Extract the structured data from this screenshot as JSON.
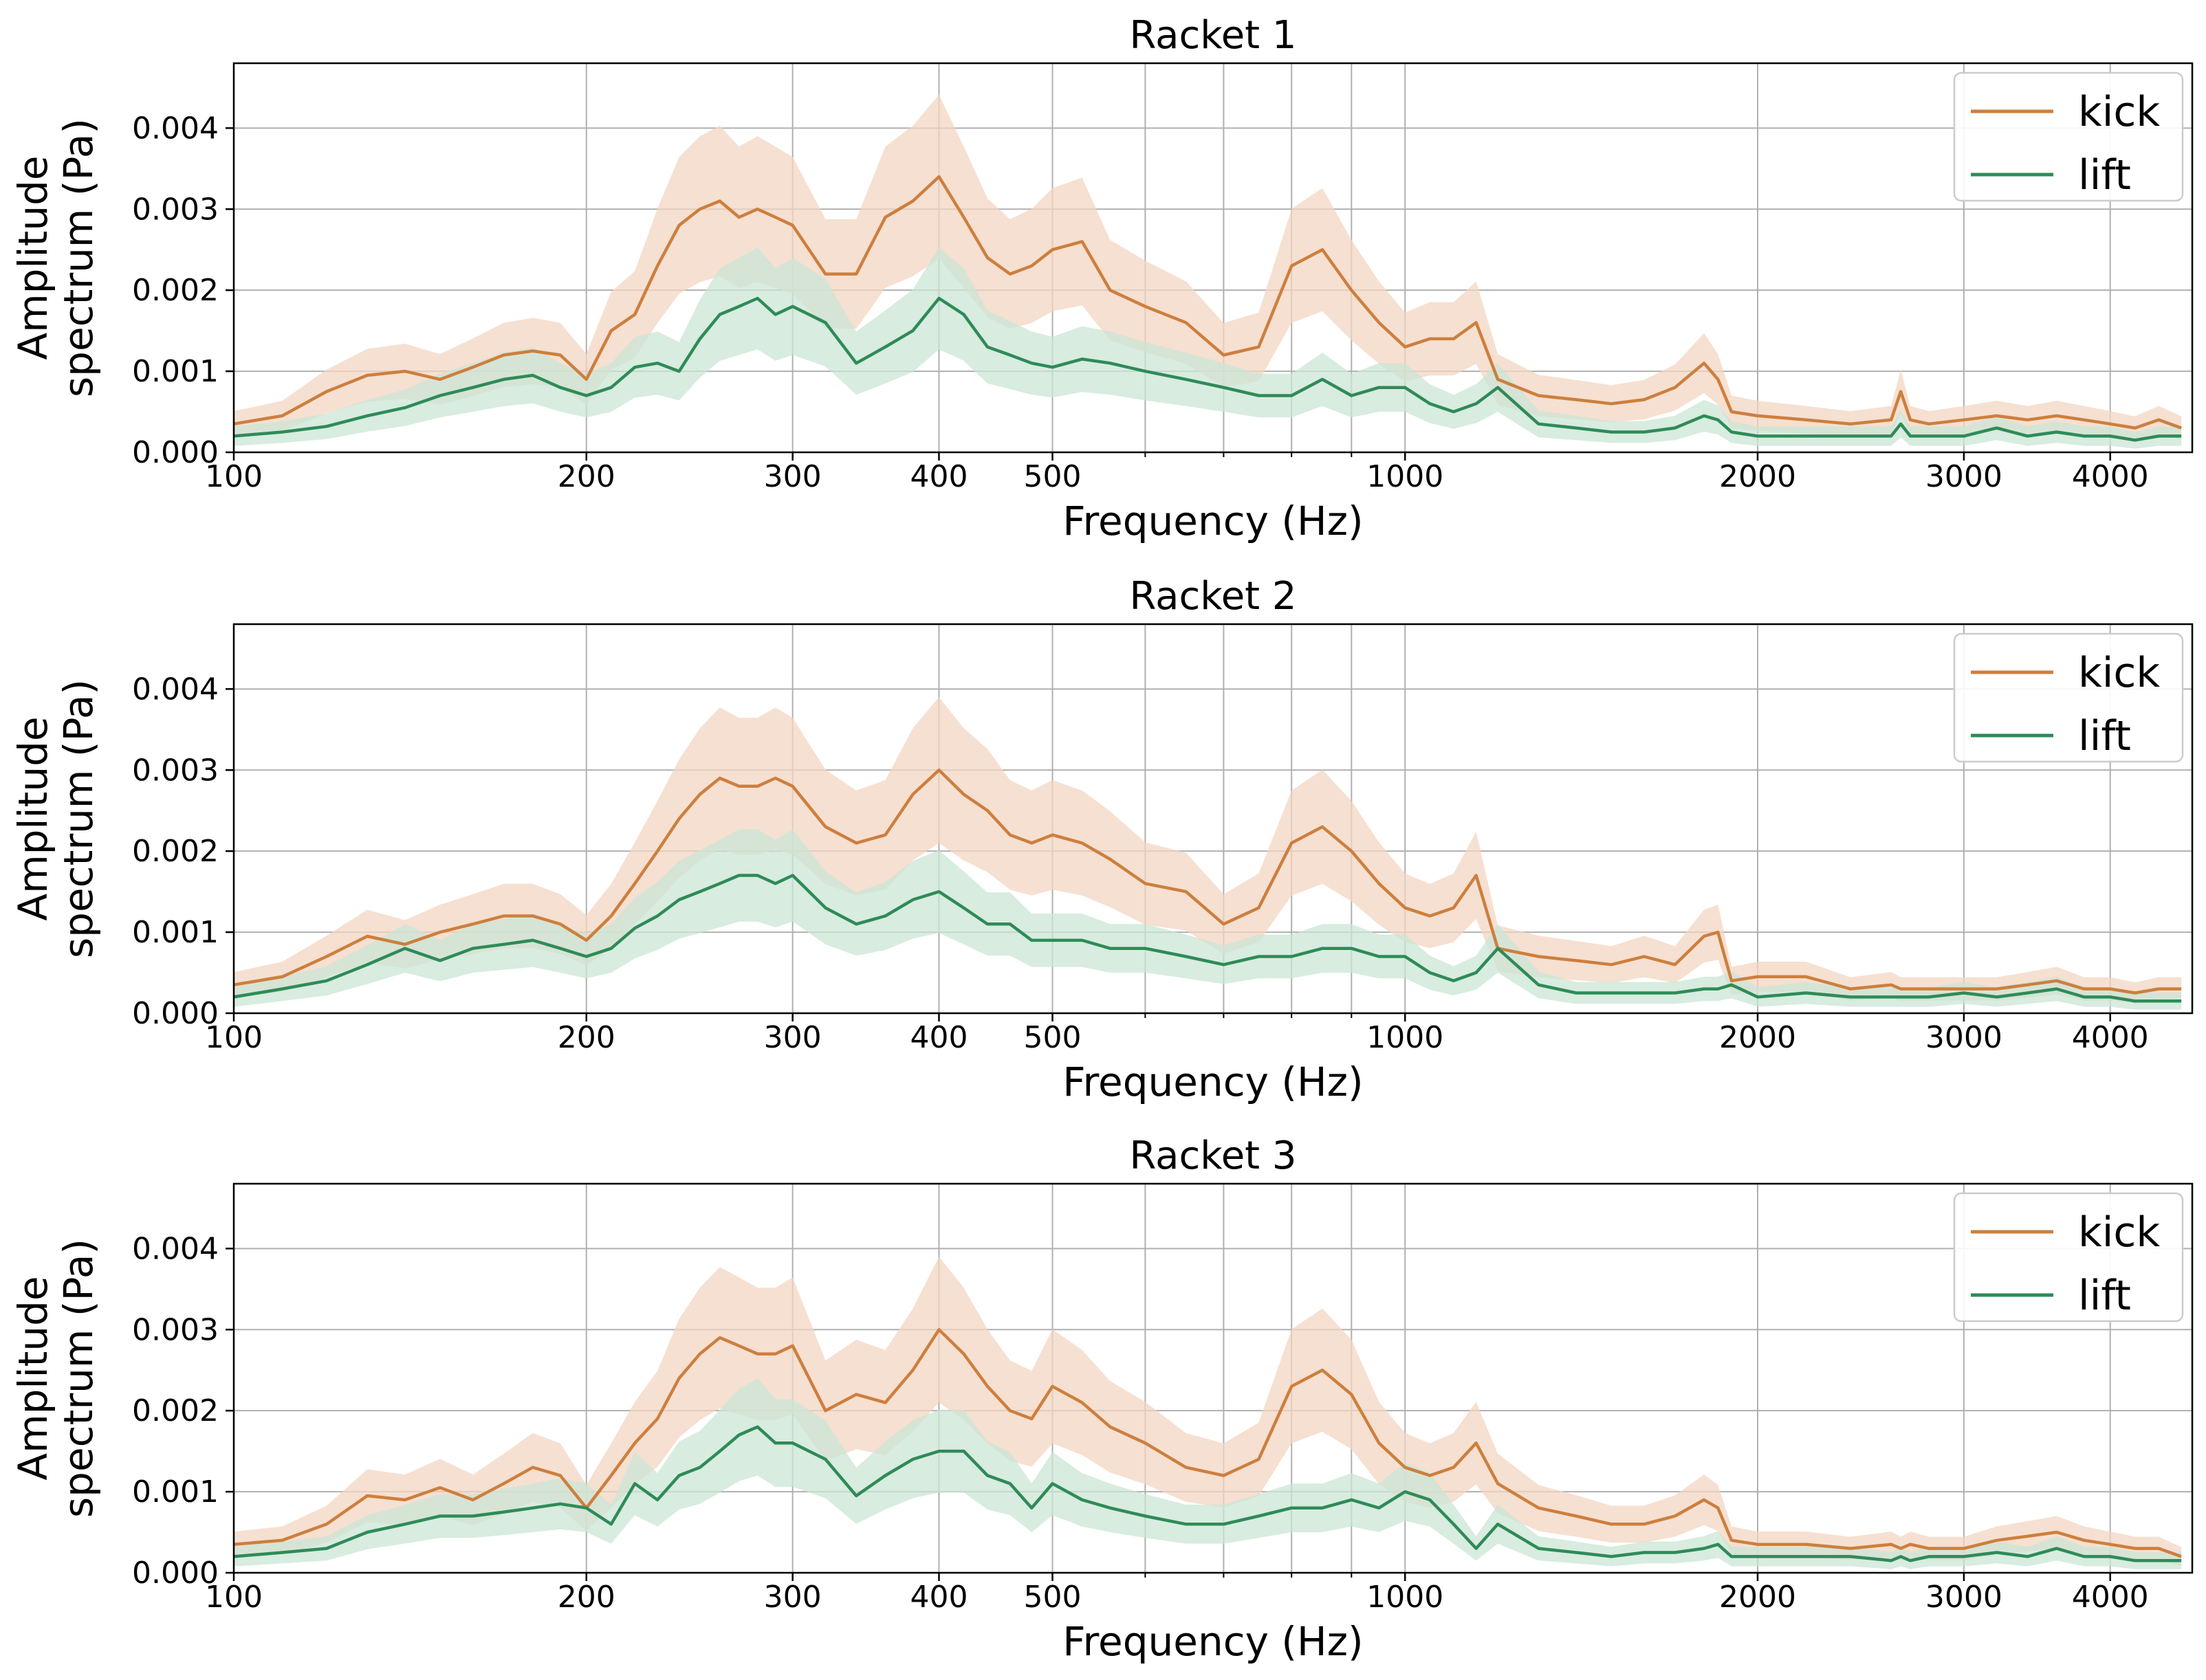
{
  "chart_data": [
    {
      "type": "line",
      "title": "Racket 1",
      "xlabel": "Frequency (Hz)",
      "ylabel": "Amplitude\nspectrum (Pa)",
      "xscale": "log",
      "xlim": [
        100,
        4700
      ],
      "ylim": [
        0,
        0.0048
      ],
      "grid": true,
      "legend_position": "top-right",
      "x_ticks": [
        100,
        200,
        300,
        400,
        500,
        1000,
        2000,
        3000,
        4000
      ],
      "x_tick_labels": [
        "100",
        "200",
        "300",
        "400",
        "500",
        "1000",
        "2000",
        "3000",
        "4000"
      ],
      "x_minor_gridlines": [
        600,
        700,
        800,
        900
      ],
      "y_ticks": [
        0,
        0.001,
        0.002,
        0.003,
        0.004
      ],
      "y_tick_labels": [
        "0.000",
        "0.001",
        "0.002",
        "0.003",
        "0.004"
      ],
      "series": [
        {
          "name": "kick",
          "color": "#CD7F3E",
          "band_color": "#F3D6C2",
          "x": [
            100,
            110,
            120,
            130,
            140,
            150,
            160,
            170,
            180,
            190,
            200,
            210,
            220,
            230,
            240,
            250,
            260,
            270,
            280,
            290,
            300,
            320,
            340,
            360,
            380,
            400,
            420,
            440,
            460,
            480,
            500,
            530,
            560,
            600,
            650,
            700,
            750,
            800,
            850,
            900,
            950,
            1000,
            1050,
            1100,
            1150,
            1200,
            1300,
            1400,
            1500,
            1600,
            1700,
            1800,
            1850,
            1900,
            2000,
            2200,
            2400,
            2600,
            2650,
            2700,
            2800,
            3000,
            3200,
            3400,
            3600,
            3800,
            4000,
            4200,
            4400,
            4600
          ],
          "y": [
            0.00035,
            0.00045,
            0.00075,
            0.00095,
            0.001,
            0.0009,
            0.00105,
            0.0012,
            0.00125,
            0.0012,
            0.0009,
            0.0015,
            0.0017,
            0.0023,
            0.0028,
            0.003,
            0.0031,
            0.0029,
            0.003,
            0.0029,
            0.0028,
            0.0022,
            0.0022,
            0.0029,
            0.0031,
            0.0034,
            0.0029,
            0.0024,
            0.0022,
            0.0023,
            0.0025,
            0.0026,
            0.002,
            0.0018,
            0.0016,
            0.0012,
            0.0013,
            0.0023,
            0.0025,
            0.002,
            0.0016,
            0.0013,
            0.0014,
            0.0014,
            0.0016,
            0.0009,
            0.0007,
            0.00065,
            0.0006,
            0.00065,
            0.0008,
            0.0011,
            0.0009,
            0.0005,
            0.00045,
            0.0004,
            0.00035,
            0.0004,
            0.00075,
            0.0004,
            0.00035,
            0.0004,
            0.00045,
            0.0004,
            0.00045,
            0.0004,
            0.00035,
            0.0003,
            0.0004,
            0.0003
          ]
        },
        {
          "name": "lift",
          "color": "#2E8B57",
          "band_color": "#CBE6D6",
          "x": [
            100,
            110,
            120,
            130,
            140,
            150,
            160,
            170,
            180,
            190,
            200,
            210,
            220,
            230,
            240,
            250,
            260,
            270,
            280,
            290,
            300,
            320,
            340,
            360,
            380,
            400,
            420,
            440,
            460,
            480,
            500,
            530,
            560,
            600,
            650,
            700,
            750,
            800,
            850,
            900,
            950,
            1000,
            1050,
            1100,
            1150,
            1200,
            1300,
            1400,
            1500,
            1600,
            1700,
            1800,
            1850,
            1900,
            2000,
            2200,
            2400,
            2600,
            2650,
            2700,
            2800,
            3000,
            3200,
            3400,
            3600,
            3800,
            4000,
            4200,
            4400,
            4600
          ],
          "y": [
            0.0002,
            0.00025,
            0.00032,
            0.00045,
            0.00055,
            0.0007,
            0.0008,
            0.0009,
            0.00095,
            0.0008,
            0.0007,
            0.0008,
            0.00105,
            0.0011,
            0.001,
            0.0014,
            0.0017,
            0.0018,
            0.0019,
            0.0017,
            0.0018,
            0.0016,
            0.0011,
            0.0013,
            0.0015,
            0.0019,
            0.0017,
            0.0013,
            0.0012,
            0.0011,
            0.00105,
            0.00115,
            0.0011,
            0.001,
            0.0009,
            0.0008,
            0.0007,
            0.0007,
            0.0009,
            0.0007,
            0.0008,
            0.0008,
            0.0006,
            0.0005,
            0.0006,
            0.0008,
            0.00035,
            0.0003,
            0.00025,
            0.00025,
            0.0003,
            0.00045,
            0.0004,
            0.00025,
            0.0002,
            0.0002,
            0.0002,
            0.0002,
            0.00035,
            0.0002,
            0.0002,
            0.0002,
            0.0003,
            0.0002,
            0.00025,
            0.0002,
            0.0002,
            0.00015,
            0.0002,
            0.0002
          ]
        }
      ]
    },
    {
      "type": "line",
      "title": "Racket 2",
      "xlabel": "Frequency (Hz)",
      "ylabel": "Amplitude\nspectrum (Pa)",
      "xscale": "log",
      "xlim": [
        100,
        4700
      ],
      "ylim": [
        0,
        0.0048
      ],
      "grid": true,
      "legend_position": "top-right",
      "x_ticks": [
        100,
        200,
        300,
        400,
        500,
        1000,
        2000,
        3000,
        4000
      ],
      "x_tick_labels": [
        "100",
        "200",
        "300",
        "400",
        "500",
        "1000",
        "2000",
        "3000",
        "4000"
      ],
      "x_minor_gridlines": [
        600,
        700,
        800,
        900
      ],
      "y_ticks": [
        0,
        0.001,
        0.002,
        0.003,
        0.004
      ],
      "y_tick_labels": [
        "0.000",
        "0.001",
        "0.002",
        "0.003",
        "0.004"
      ],
      "series": [
        {
          "name": "kick",
          "color": "#CD7F3E",
          "band_color": "#F3D6C2",
          "x": [
            100,
            110,
            120,
            130,
            140,
            150,
            160,
            170,
            180,
            190,
            200,
            210,
            220,
            230,
            240,
            250,
            260,
            270,
            280,
            290,
            300,
            320,
            340,
            360,
            380,
            400,
            420,
            440,
            460,
            480,
            500,
            530,
            560,
            600,
            650,
            700,
            750,
            800,
            850,
            900,
            950,
            1000,
            1050,
            1100,
            1150,
            1200,
            1300,
            1400,
            1500,
            1600,
            1700,
            1800,
            1850,
            1900,
            2000,
            2200,
            2400,
            2600,
            2650,
            2700,
            2800,
            3000,
            3200,
            3400,
            3600,
            3800,
            4000,
            4200,
            4400,
            4600
          ],
          "y": [
            0.00035,
            0.00045,
            0.0007,
            0.00095,
            0.00085,
            0.001,
            0.0011,
            0.0012,
            0.0012,
            0.0011,
            0.0009,
            0.0012,
            0.0016,
            0.002,
            0.0024,
            0.0027,
            0.0029,
            0.0028,
            0.0028,
            0.0029,
            0.0028,
            0.0023,
            0.0021,
            0.0022,
            0.0027,
            0.003,
            0.0027,
            0.0025,
            0.0022,
            0.0021,
            0.0022,
            0.0021,
            0.0019,
            0.0016,
            0.0015,
            0.0011,
            0.0013,
            0.0021,
            0.0023,
            0.002,
            0.0016,
            0.0013,
            0.0012,
            0.0013,
            0.0017,
            0.0008,
            0.0007,
            0.00065,
            0.0006,
            0.0007,
            0.0006,
            0.00095,
            0.001,
            0.0004,
            0.00045,
            0.00045,
            0.0003,
            0.00035,
            0.0003,
            0.0003,
            0.0003,
            0.0003,
            0.0003,
            0.00035,
            0.0004,
            0.0003,
            0.0003,
            0.00025,
            0.0003,
            0.0003
          ]
        },
        {
          "name": "lift",
          "color": "#2E8B57",
          "band_color": "#CBE6D6",
          "x": [
            100,
            110,
            120,
            130,
            140,
            150,
            160,
            170,
            180,
            190,
            200,
            210,
            220,
            230,
            240,
            250,
            260,
            270,
            280,
            290,
            300,
            320,
            340,
            360,
            380,
            400,
            420,
            440,
            460,
            480,
            500,
            530,
            560,
            600,
            650,
            700,
            750,
            800,
            850,
            900,
            950,
            1000,
            1050,
            1100,
            1150,
            1200,
            1300,
            1400,
            1500,
            1600,
            1700,
            1800,
            1850,
            1900,
            2000,
            2200,
            2400,
            2600,
            2650,
            2700,
            2800,
            3000,
            3200,
            3400,
            3600,
            3800,
            4000,
            4200,
            4400,
            4600
          ],
          "y": [
            0.0002,
            0.0003,
            0.0004,
            0.0006,
            0.0008,
            0.00065,
            0.0008,
            0.00085,
            0.0009,
            0.0008,
            0.0007,
            0.0008,
            0.00105,
            0.0012,
            0.0014,
            0.0015,
            0.0016,
            0.0017,
            0.0017,
            0.0016,
            0.0017,
            0.0013,
            0.0011,
            0.0012,
            0.0014,
            0.0015,
            0.0013,
            0.0011,
            0.0011,
            0.0009,
            0.0009,
            0.0009,
            0.0008,
            0.0008,
            0.0007,
            0.0006,
            0.0007,
            0.0007,
            0.0008,
            0.0008,
            0.0007,
            0.0007,
            0.0005,
            0.0004,
            0.0005,
            0.0008,
            0.00035,
            0.00025,
            0.00025,
            0.00025,
            0.00025,
            0.0003,
            0.0003,
            0.00035,
            0.0002,
            0.00025,
            0.0002,
            0.0002,
            0.0002,
            0.0002,
            0.0002,
            0.00025,
            0.0002,
            0.00025,
            0.0003,
            0.0002,
            0.0002,
            0.00015,
            0.00015,
            0.00015
          ]
        }
      ]
    },
    {
      "type": "line",
      "title": "Racket 3",
      "xlabel": "Frequency (Hz)",
      "ylabel": "Amplitude\nspectrum (Pa)",
      "xscale": "log",
      "xlim": [
        100,
        4700
      ],
      "ylim": [
        0,
        0.0048
      ],
      "grid": true,
      "legend_position": "top-right",
      "x_ticks": [
        100,
        200,
        300,
        400,
        500,
        1000,
        2000,
        3000,
        4000
      ],
      "x_tick_labels": [
        "100",
        "200",
        "300",
        "400",
        "500",
        "1000",
        "2000",
        "3000",
        "4000"
      ],
      "x_minor_gridlines": [
        600,
        700,
        800,
        900
      ],
      "y_ticks": [
        0,
        0.001,
        0.002,
        0.003,
        0.004
      ],
      "y_tick_labels": [
        "0.000",
        "0.001",
        "0.002",
        "0.003",
        "0.004"
      ],
      "series": [
        {
          "name": "kick",
          "color": "#CD7F3E",
          "band_color": "#F3D6C2",
          "x": [
            100,
            110,
            120,
            130,
            140,
            150,
            160,
            170,
            180,
            190,
            200,
            210,
            220,
            230,
            240,
            250,
            260,
            270,
            280,
            290,
            300,
            320,
            340,
            360,
            380,
            400,
            420,
            440,
            460,
            480,
            500,
            530,
            560,
            600,
            650,
            700,
            750,
            800,
            850,
            900,
            950,
            1000,
            1050,
            1100,
            1150,
            1200,
            1300,
            1400,
            1500,
            1600,
            1700,
            1800,
            1850,
            1900,
            2000,
            2200,
            2400,
            2600,
            2650,
            2700,
            2800,
            3000,
            3200,
            3400,
            3600,
            3800,
            4000,
            4200,
            4400,
            4600
          ],
          "y": [
            0.00035,
            0.0004,
            0.0006,
            0.00095,
            0.0009,
            0.00105,
            0.0009,
            0.0011,
            0.0013,
            0.0012,
            0.0008,
            0.0012,
            0.0016,
            0.0019,
            0.0024,
            0.0027,
            0.0029,
            0.0028,
            0.0027,
            0.0027,
            0.0028,
            0.002,
            0.0022,
            0.0021,
            0.0025,
            0.003,
            0.0027,
            0.0023,
            0.002,
            0.0019,
            0.0023,
            0.0021,
            0.0018,
            0.0016,
            0.0013,
            0.0012,
            0.0014,
            0.0023,
            0.0025,
            0.0022,
            0.0016,
            0.0013,
            0.0012,
            0.0013,
            0.0016,
            0.0011,
            0.0008,
            0.0007,
            0.0006,
            0.0006,
            0.0007,
            0.0009,
            0.0008,
            0.0004,
            0.00035,
            0.00035,
            0.0003,
            0.00035,
            0.0003,
            0.00035,
            0.0003,
            0.0003,
            0.0004,
            0.00045,
            0.0005,
            0.0004,
            0.00035,
            0.0003,
            0.0003,
            0.0002
          ]
        },
        {
          "name": "lift",
          "color": "#2E8B57",
          "band_color": "#CBE6D6",
          "x": [
            100,
            110,
            120,
            130,
            140,
            150,
            160,
            170,
            180,
            190,
            200,
            210,
            220,
            230,
            240,
            250,
            260,
            270,
            280,
            290,
            300,
            320,
            340,
            360,
            380,
            400,
            420,
            440,
            460,
            480,
            500,
            530,
            560,
            600,
            650,
            700,
            750,
            800,
            850,
            900,
            950,
            1000,
            1050,
            1100,
            1150,
            1200,
            1300,
            1400,
            1500,
            1600,
            1700,
            1800,
            1850,
            1900,
            2000,
            2200,
            2400,
            2600,
            2650,
            2700,
            2800,
            3000,
            3200,
            3400,
            3600,
            3800,
            4000,
            4200,
            4400,
            4600
          ],
          "y": [
            0.0002,
            0.00025,
            0.0003,
            0.0005,
            0.0006,
            0.0007,
            0.0007,
            0.00075,
            0.0008,
            0.00085,
            0.0008,
            0.0006,
            0.0011,
            0.0009,
            0.0012,
            0.0013,
            0.0015,
            0.0017,
            0.0018,
            0.0016,
            0.0016,
            0.0014,
            0.00095,
            0.0012,
            0.0014,
            0.0015,
            0.0015,
            0.0012,
            0.0011,
            0.0008,
            0.0011,
            0.0009,
            0.0008,
            0.0007,
            0.0006,
            0.0006,
            0.0007,
            0.0008,
            0.0008,
            0.0009,
            0.0008,
            0.001,
            0.0009,
            0.0006,
            0.0003,
            0.0006,
            0.0003,
            0.00025,
            0.0002,
            0.00025,
            0.00025,
            0.0003,
            0.00035,
            0.0002,
            0.0002,
            0.0002,
            0.0002,
            0.00015,
            0.0002,
            0.00015,
            0.0002,
            0.0002,
            0.00025,
            0.0002,
            0.0003,
            0.0002,
            0.0002,
            0.00015,
            0.00015,
            0.00015
          ]
        }
      ]
    }
  ]
}
